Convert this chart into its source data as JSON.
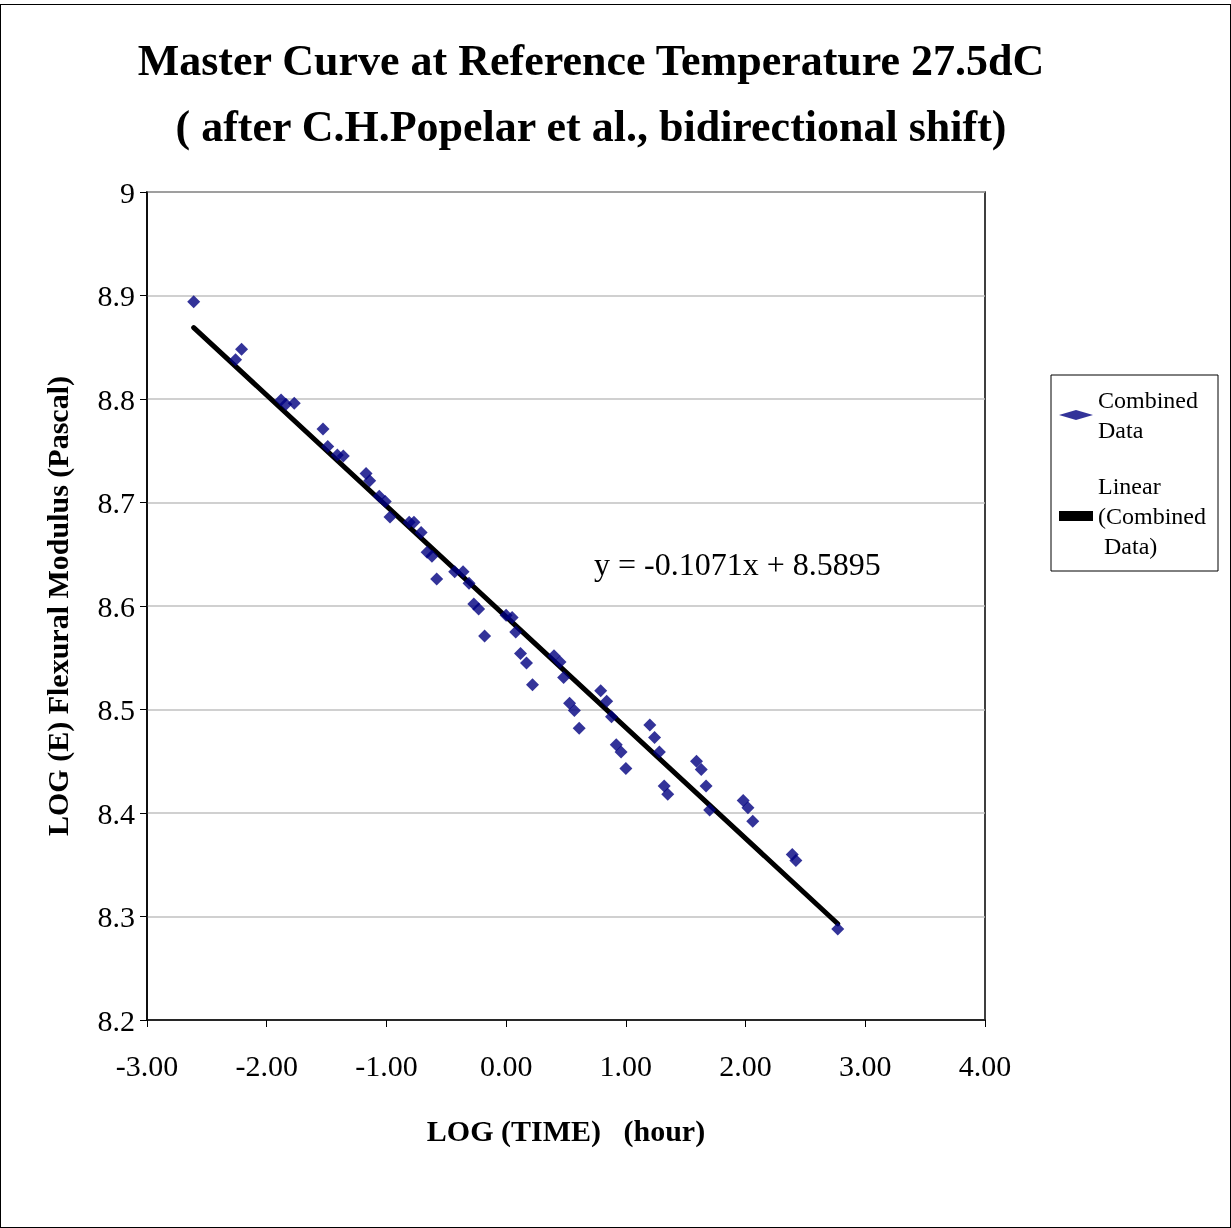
{
  "chart_data": {
    "type": "scatter",
    "title": "Master Curve at Reference Temperature 27.5dC",
    "subtitle": "( after C.H.Popelar et al., bidirectional shift)",
    "xlabel": "LOG (TIME)   (hour)",
    "ylabel": "LOG (E) Flexural Modulus (Pascal)",
    "annotations": [
      "y = -0.1071x + 8.5895"
    ],
    "series": [
      {
        "name": "Combined Data",
        "color": "#000080",
        "marker": "diamond",
        "x": [
          -2.61,
          -2.26,
          -2.21,
          -1.88,
          -1.84,
          -1.77,
          -1.53,
          -1.49,
          -1.41,
          -1.36,
          -1.17,
          -1.14,
          -1.06,
          -1.01,
          -0.97,
          -0.81,
          -0.77,
          -0.71,
          -0.66,
          -0.62,
          -0.58,
          -0.43,
          -0.36,
          -0.31,
          -0.27,
          -0.23,
          -0.18,
          0.0,
          0.05,
          0.08,
          0.12,
          0.17,
          0.22,
          0.4,
          0.45,
          0.48,
          0.53,
          0.57,
          0.61,
          0.79,
          0.84,
          0.88,
          0.92,
          0.96,
          1.0,
          1.2,
          1.24,
          1.28,
          1.32,
          1.35,
          1.59,
          1.63,
          1.67,
          1.7,
          1.98,
          2.02,
          2.06,
          2.39,
          2.42,
          2.77
        ],
        "values": [
          8.894,
          8.838,
          8.848,
          8.799,
          8.795,
          8.796,
          8.771,
          8.754,
          8.746,
          8.745,
          8.728,
          8.721,
          8.706,
          8.701,
          8.686,
          8.681,
          8.681,
          8.671,
          8.652,
          8.648,
          8.626,
          8.633,
          8.633,
          8.622,
          8.602,
          8.597,
          8.571,
          8.591,
          8.589,
          8.575,
          8.554,
          8.545,
          8.524,
          8.552,
          8.546,
          8.531,
          8.506,
          8.499,
          8.482,
          8.518,
          8.508,
          8.493,
          8.466,
          8.459,
          8.443,
          8.485,
          8.473,
          8.459,
          8.426,
          8.418,
          8.45,
          8.442,
          8.426,
          8.403,
          8.412,
          8.405,
          8.392,
          8.36,
          8.354,
          8.288
        ]
      },
      {
        "name": "Linear (Combined Data)",
        "type": "line",
        "color": "#000000",
        "marker": "none",
        "line_style": "solid",
        "x": [
          -2.61,
          2.77
        ],
        "values": [
          8.869,
          8.293
        ]
      }
    ],
    "xlim": [
      -3,
      4
    ],
    "xticks": [
      {
        "value": -3,
        "label": "-3.00"
      },
      {
        "value": -2,
        "label": "-2.00"
      },
      {
        "value": -1,
        "label": "-1.00"
      },
      {
        "value": 0,
        "label": "0.00"
      },
      {
        "value": 1,
        "label": "1.00"
      },
      {
        "value": 2,
        "label": "2.00"
      },
      {
        "value": 3,
        "label": "3.00"
      },
      {
        "value": 4,
        "label": "4.00"
      }
    ],
    "ylim": [
      8.2,
      9
    ],
    "yticks": [
      8.2,
      8.3,
      8.4,
      8.5,
      8.6,
      8.7,
      8.8,
      8.9,
      9
    ],
    "grid": "y",
    "legend": "right"
  }
}
